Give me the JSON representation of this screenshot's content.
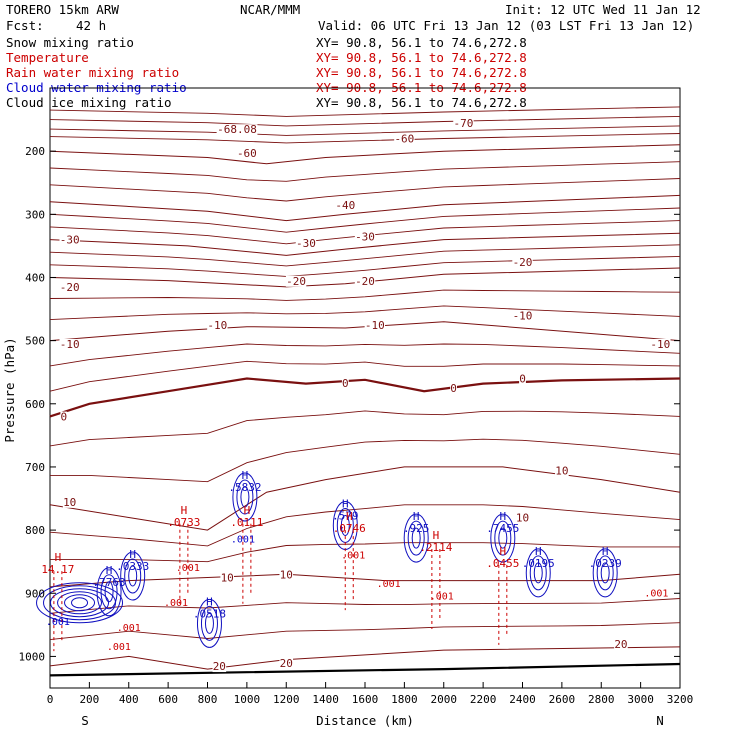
{
  "header": {
    "model": "TORERO  15km ARW",
    "center": "NCAR/MMM",
    "init": "Init: 12 UTC Wed 11 Jan 12",
    "fcst_label": "Fcst:",
    "fcst_value": "42 h",
    "valid": "Valid: 06 UTC Fri 13 Jan 12 (03 LST Fri 13 Jan 12)"
  },
  "legend": [
    {
      "label": "Snow mixing ratio",
      "xy": "XY=  90.8, 56.1 to  74.6,272.8",
      "color": "#000000"
    },
    {
      "label": "Temperature",
      "xy": "XY=  90.8, 56.1 to  74.6,272.8",
      "color": "#cc0000"
    },
    {
      "label": "Rain water mixing ratio",
      "xy": "XY=  90.8, 56.1 to  74.6,272.8",
      "color": "#cc0000"
    },
    {
      "label": "Cloud water mixing ratio",
      "xy": "XY=  90.8, 56.1 to  74.6,272.8",
      "color": "#0000cc"
    },
    {
      "label": "Cloud ice mixing ratio",
      "xy": "XY=  90.8, 56.1 to  74.6,272.8",
      "color": "#000000"
    }
  ],
  "chart_data": {
    "type": "contour",
    "xlabel": "Distance (km)",
    "ylabel": "Pressure (hPa)",
    "xlim": [
      0,
      3200
    ],
    "ylim": [
      1050,
      100
    ],
    "xticks": [
      0,
      200,
      400,
      600,
      800,
      1000,
      1200,
      1400,
      1600,
      1800,
      2000,
      2200,
      2400,
      2600,
      2800,
      3000,
      3200
    ],
    "yticks": [
      200,
      300,
      400,
      500,
      600,
      700,
      800,
      900,
      1000
    ],
    "x_end_labels": {
      "left": "S",
      "right": "N"
    },
    "temperature_contours": [
      {
        "level": -60,
        "label": "-60",
        "points": [
          [
            0,
            200
          ],
          [
            800,
            210
          ],
          [
            1100,
            220
          ],
          [
            1400,
            210
          ],
          [
            2000,
            200
          ],
          [
            3200,
            190
          ]
        ]
      },
      {
        "level": -40,
        "label": "-40",
        "points": [
          [
            0,
            280
          ],
          [
            800,
            295
          ],
          [
            1200,
            310
          ],
          [
            1500,
            300
          ],
          [
            2000,
            285
          ],
          [
            3200,
            270
          ]
        ]
      },
      {
        "level": -30,
        "label": "-30",
        "points": [
          [
            0,
            340
          ],
          [
            700,
            350
          ],
          [
            1200,
            365
          ],
          [
            1500,
            355
          ],
          [
            2000,
            340
          ],
          [
            3200,
            330
          ]
        ]
      },
      {
        "level": -20,
        "label": "-20",
        "points": [
          [
            0,
            400
          ],
          [
            600,
            405
          ],
          [
            1200,
            415
          ],
          [
            1500,
            410
          ],
          [
            2000,
            395
          ],
          [
            3200,
            385
          ]
        ]
      },
      {
        "level": -10,
        "label": "-10",
        "points": [
          [
            0,
            500
          ],
          [
            600,
            485
          ],
          [
            1000,
            478
          ],
          [
            1500,
            480
          ],
          [
            2000,
            470
          ],
          [
            3200,
            500
          ]
        ]
      },
      {
        "level": 0,
        "label": "0",
        "points": [
          [
            0,
            620
          ],
          [
            200,
            600
          ],
          [
            600,
            580
          ],
          [
            1000,
            560
          ],
          [
            1300,
            568
          ],
          [
            1600,
            562
          ],
          [
            1900,
            580
          ],
          [
            2200,
            568
          ],
          [
            2600,
            563
          ],
          [
            3200,
            560
          ]
        ]
      },
      {
        "level": 10,
        "label": "10",
        "points": [
          [
            0,
            760
          ],
          [
            400,
            780
          ],
          [
            800,
            800
          ],
          [
            1100,
            740
          ],
          [
            1400,
            720
          ],
          [
            1800,
            700
          ],
          [
            2300,
            700
          ],
          [
            2800,
            720
          ],
          [
            3200,
            740
          ]
        ]
      },
      {
        "level": 10,
        "label": "10",
        "points": [
          [
            0,
            890
          ],
          [
            400,
            880
          ],
          [
            800,
            875
          ],
          [
            1200,
            870
          ],
          [
            1700,
            880
          ],
          [
            2200,
            880
          ],
          [
            2800,
            880
          ],
          [
            3200,
            870
          ]
        ]
      },
      {
        "level": 20,
        "label": "20",
        "points": [
          [
            0,
            1015
          ],
          [
            400,
            1000
          ],
          [
            800,
            1020
          ],
          [
            1200,
            1005
          ],
          [
            2000,
            990
          ],
          [
            3200,
            985
          ]
        ]
      }
    ],
    "contour_labels": [
      {
        "text": "-68.08",
        "x": 950,
        "y": 170
      },
      {
        "text": "-60",
        "x": 1800,
        "y": 185
      },
      {
        "text": "-70",
        "x": 2100,
        "y": 160
      },
      {
        "text": "-60",
        "x": 1000,
        "y": 208
      },
      {
        "text": "-40",
        "x": 1500,
        "y": 290
      },
      {
        "text": "-30",
        "x": 100,
        "y": 345
      },
      {
        "text": "-30",
        "x": 1300,
        "y": 350
      },
      {
        "text": "-30",
        "x": 1600,
        "y": 340
      },
      {
        "text": "-20",
        "x": 100,
        "y": 420
      },
      {
        "text": "-20",
        "x": 1250,
        "y": 410
      },
      {
        "text": "-20",
        "x": 1600,
        "y": 410
      },
      {
        "text": "-20",
        "x": 2400,
        "y": 380
      },
      {
        "text": "-10",
        "x": 100,
        "y": 510
      },
      {
        "text": "-10",
        "x": 850,
        "y": 480
      },
      {
        "text": "-10",
        "x": 1650,
        "y": 480
      },
      {
        "text": "-10",
        "x": 2400,
        "y": 465
      },
      {
        "text": "-10",
        "x": 3100,
        "y": 510
      },
      {
        "text": "0",
        "x": 70,
        "y": 625
      },
      {
        "text": "0",
        "x": 1500,
        "y": 572
      },
      {
        "text": "0",
        "x": 2050,
        "y": 580
      },
      {
        "text": "0",
        "x": 2400,
        "y": 565
      },
      {
        "text": "10",
        "x": 100,
        "y": 760
      },
      {
        "text": "10",
        "x": 2600,
        "y": 710
      },
      {
        "text": "10",
        "x": 2400,
        "y": 785
      },
      {
        "text": "10",
        "x": 900,
        "y": 880
      },
      {
        "text": "10",
        "x": 1200,
        "y": 875
      },
      {
        "text": "20",
        "x": 2900,
        "y": 985
      },
      {
        "text": "20",
        "x": 860,
        "y": 1020
      },
      {
        "text": "20",
        "x": 1200,
        "y": 1015
      }
    ],
    "cloud_water_maxima": [
      {
        "mark": "H",
        "value": ".5832",
        "x": 990,
        "y": 735
      },
      {
        "mark": "H",
        "value": ".579",
        "x": 1500,
        "y": 780
      },
      {
        "mark": "H",
        "value": ".925",
        "x": 1860,
        "y": 800
      },
      {
        "mark": "H",
        "value": ".7455",
        "x": 2300,
        "y": 800
      },
      {
        "mark": "H",
        "value": ".7763",
        "x": 300,
        "y": 885
      },
      {
        "mark": "H",
        "value": ".0518",
        "x": 810,
        "y": 935
      },
      {
        "mark": "H",
        "value": ".0195",
        "x": 2480,
        "y": 855
      },
      {
        "mark": "H",
        "value": ".0239",
        "x": 2820,
        "y": 855
      },
      {
        "mark": "H",
        "value": ".0333",
        "x": 420,
        "y": 860
      }
    ],
    "rain_water_maxima": [
      {
        "mark": "H",
        "value": "14.17",
        "x": 40,
        "y": 865
      },
      {
        "mark": "H",
        "value": ".0733",
        "x": 680,
        "y": 790
      },
      {
        "mark": "H",
        "value": ".0746",
        "x": 1520,
        "y": 800
      },
      {
        "mark": "H",
        "value": ".0111",
        "x": 1000,
        "y": 790
      },
      {
        "mark": "H",
        "value": ".2114",
        "x": 1960,
        "y": 830
      },
      {
        "mark": "H",
        "value": ".0455",
        "x": 2300,
        "y": 855
      }
    ],
    "small_labels": [
      {
        "text": ".001",
        "x": 980,
        "y": 820,
        "color": "#0000cc"
      },
      {
        "text": ".001",
        "x": 700,
        "y": 865,
        "color": "#cc0000"
      },
      {
        "text": ".001",
        "x": 1540,
        "y": 845,
        "color": "#cc0000"
      },
      {
        "text": ".001",
        "x": 1720,
        "y": 890,
        "color": "#cc0000"
      },
      {
        "text": ".001",
        "x": 1990,
        "y": 910,
        "color": "#cc0000"
      },
      {
        "text": ".001",
        "x": 640,
        "y": 920,
        "color": "#cc0000"
      },
      {
        "text": ".001",
        "x": 400,
        "y": 960,
        "color": "#cc0000"
      },
      {
        "text": ".001",
        "x": 350,
        "y": 990,
        "color": "#cc0000"
      },
      {
        "text": ".001",
        "x": 3080,
        "y": 905,
        "color": "#cc0000"
      },
      {
        "text": ".001",
        "x": 40,
        "y": 950,
        "color": "#0000cc"
      }
    ],
    "ground_pressure": [
      [
        0,
        1030
      ],
      [
        400,
        1028
      ],
      [
        1000,
        1025
      ],
      [
        2000,
        1020
      ],
      [
        3200,
        1012
      ]
    ]
  }
}
